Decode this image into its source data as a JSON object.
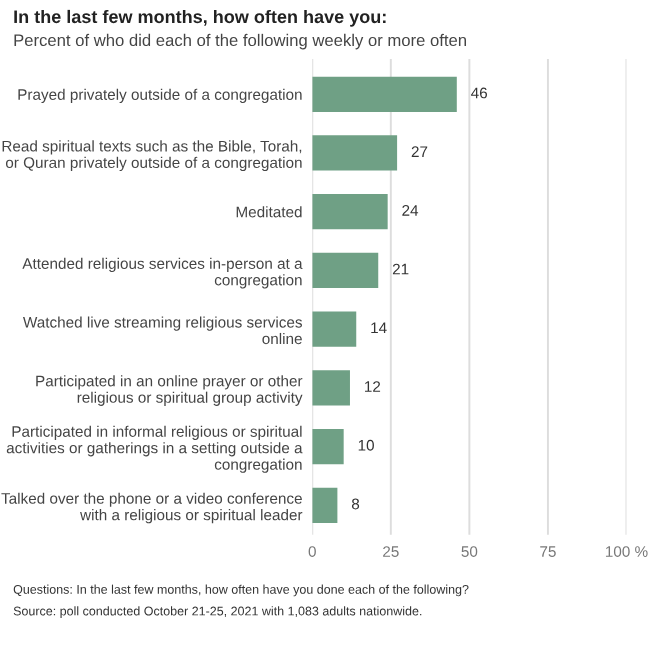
{
  "chart_data": {
    "type": "bar",
    "orientation": "horizontal",
    "title": "In the last few months, how often have you:",
    "subtitle": "Percent of who did each of the following weekly or more often",
    "categories": [
      "Prayed privately outside of a congregation",
      "Read spiritual texts such as the Bible, Torah,\nor Quran privately outside of a congregation",
      "Meditated",
      "Attended religious services in-person at a\ncongregation",
      "Watched live streaming religious services\nonline",
      "Participated in an online prayer or other\nreligious or spiritual group activity",
      "Participated in informal religious or spiritual\nactivities or gatherings in a setting outside a\ncongregation",
      "Talked over the phone or a video conference\nwith a religious or spiritual leader"
    ],
    "values": [
      46,
      27,
      24,
      21,
      14,
      12,
      10,
      8
    ],
    "color": "#6fa085",
    "data_labels": true,
    "xlim": [
      0,
      100
    ],
    "xticks": [
      0,
      25,
      50,
      75,
      {
        "value": 100,
        "label": "100 %"
      }
    ],
    "grid": "x",
    "annotations": [
      "Questions: In the last few months, how often have you done each of the following?",
      "Source: poll conducted October 21-25, 2021 with 1,083 adults nationwide."
    ]
  }
}
